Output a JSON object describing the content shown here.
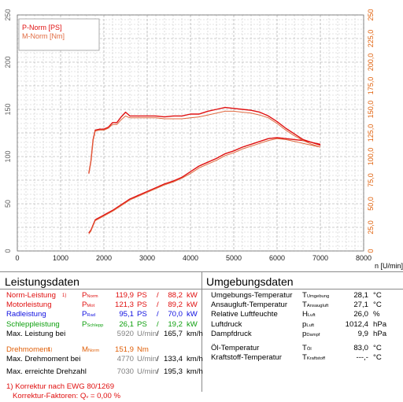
{
  "chart_data": {
    "type": "line",
    "left_axis": {
      "ticks": [
        "0",
        "50",
        "100",
        "150",
        "200",
        "250"
      ],
      "ylim": [
        0,
        250
      ]
    },
    "right_axis": {
      "ticks": [
        "0",
        "25,0",
        "50,0",
        "75,0",
        "100,0",
        "125,0",
        "150,0",
        "175,0",
        "200,0",
        "225,0",
        "250"
      ],
      "ylim": [
        0,
        250
      ]
    },
    "x_axis": {
      "ticks": [
        "0",
        "1000",
        "2000",
        "3000",
        "4000",
        "5000",
        "6000",
        "7000",
        "8000"
      ],
      "xlim": [
        0,
        8000
      ],
      "label": "n [U/min]"
    },
    "grid": true,
    "legend": {
      "position": "top-left",
      "entries": [
        "P-Norm [PS]",
        "M-Norm [Nm]"
      ]
    },
    "series": [
      {
        "name": "P-Norm [PS]",
        "color": "#e01010",
        "x": [
          1650,
          1700,
          1800,
          2000,
          2200,
          2400,
          2600,
          2800,
          3000,
          3200,
          3400,
          3600,
          3800,
          4000,
          4200,
          4400,
          4600,
          4800,
          5000,
          5200,
          5400,
          5600,
          5800,
          6000,
          6200,
          6400,
          6600,
          6800,
          7000
        ],
        "values": [
          19,
          22,
          33,
          38,
          43,
          49,
          55,
          59,
          63,
          67,
          71,
          74,
          78,
          84,
          90,
          94,
          98,
          103,
          106,
          110,
          113,
          116,
          119,
          120,
          119,
          118,
          117,
          115,
          113
        ]
      },
      {
        "name": "",
        "color": "#e06a40",
        "x": [
          1650,
          1700,
          1800,
          2000,
          2200,
          2400,
          2600,
          2800,
          3000,
          3200,
          3400,
          3600,
          3800,
          4000,
          4200,
          4400,
          4600,
          4800,
          5000,
          5200,
          5400,
          5600,
          5800,
          6000,
          6200,
          6400,
          6600,
          6800,
          7000
        ],
        "values": [
          18,
          21,
          32,
          37,
          42,
          48,
          54,
          58,
          62,
          66,
          70,
          73,
          77,
          82,
          88,
          92,
          96,
          101,
          104,
          108,
          111,
          114,
          117,
          119,
          118,
          116,
          114,
          112,
          110
        ]
      },
      {
        "name": "M-Norm [Nm]",
        "color": "#e01010",
        "x": [
          1650,
          1700,
          1750,
          1800,
          1900,
          2000,
          2100,
          2200,
          2300,
          2400,
          2500,
          2600,
          2800,
          3000,
          3200,
          3400,
          3600,
          3800,
          4000,
          4200,
          4400,
          4600,
          4800,
          5000,
          5200,
          5400,
          5600,
          5800,
          6000,
          6200,
          6400,
          6600,
          6800,
          7000
        ],
        "values": [
          82,
          95,
          118,
          128,
          129,
          129,
          131,
          136,
          136,
          142,
          147,
          143,
          143,
          143,
          143,
          142,
          143,
          143,
          145,
          145,
          148,
          150,
          152,
          151,
          150,
          149,
          147,
          143,
          137,
          130,
          124,
          118,
          115,
          112
        ]
      },
      {
        "name": "",
        "color": "#e06a40",
        "x": [
          1650,
          1700,
          1750,
          1800,
          1900,
          2000,
          2100,
          2200,
          2300,
          2400,
          2500,
          2600,
          2800,
          3000,
          3200,
          3400,
          3600,
          3800,
          4000,
          4200,
          4400,
          4600,
          4800,
          5000,
          5200,
          5400,
          5600,
          5800,
          6000,
          6200,
          6400,
          6600,
          6800,
          7000
        ],
        "values": [
          82,
          95,
          117,
          127,
          128,
          128,
          130,
          134,
          134,
          139,
          143,
          141,
          141,
          141,
          141,
          140,
          140,
          140,
          141,
          142,
          144,
          146,
          148,
          148,
          147,
          146,
          144,
          141,
          135,
          128,
          122,
          117,
          113,
          110
        ]
      }
    ]
  },
  "leistung": {
    "title": "Leistungsdaten",
    "rows": [
      {
        "label": "Norm-Leistung",
        "note": "1)",
        "sym": "P",
        "sub": "Norm",
        "v1": "119,9",
        "u1": "PS",
        "slash": "/",
        "v2": "88,2",
        "u2": "kW",
        "color": "#e01010"
      },
      {
        "label": "Motorleistung",
        "note": "",
        "sym": "P",
        "sub": "Mot",
        "v1": "121,3",
        "u1": "PS",
        "slash": "/",
        "v2": "89,2",
        "u2": "kW",
        "color": "#e01010"
      },
      {
        "label": "Radleistung",
        "note": "",
        "sym": "P",
        "sub": "Rad",
        "v1": "95,1",
        "u1": "PS",
        "slash": "/",
        "v2": "70,0",
        "u2": "kW",
        "color": "#1010e0"
      },
      {
        "label": "Schleppleistung",
        "note": "",
        "sym": "P",
        "sub": "Schlepp",
        "v1": "26,1",
        "u1": "PS",
        "slash": "/",
        "v2": "19,2",
        "u2": "kW",
        "color": "#10a010"
      }
    ],
    "max_leistung": {
      "label": "Max. Leistung bei",
      "rpm": "5920",
      "rpm_unit": "U/min",
      "slash": "/",
      "speed": "165,7",
      "speed_unit": "km/h"
    },
    "drehmoment": {
      "label": "Drehmoment",
      "note": "1)",
      "sym": "M",
      "sub": "Norm",
      "value": "151,9",
      "unit": "Nm"
    },
    "max_drehmoment": {
      "label": "Max. Drehmoment bei",
      "rpm": "4770",
      "rpm_unit": "U/min",
      "slash": "/",
      "speed": "133,4",
      "speed_unit": "km/h"
    },
    "max_drehzahl": {
      "label": "Max. erreichte Drehzahl",
      "rpm": "7030",
      "rpm_unit": "U/min",
      "slash": "/",
      "speed": "195,3",
      "speed_unit": "km/h"
    },
    "footnote1": "1) Korrektur nach EWG 80/1269",
    "footnote2_label": "Korrektur-Faktoren: Q",
    "footnote2_sub": "v",
    "footnote2_value": "=   0,00 %"
  },
  "umgebung": {
    "title": "Umgebungsdaten",
    "rows": [
      {
        "label": "Umgebungs-Temperatur",
        "sym": "T",
        "sub": "Umgebung",
        "value": "28,1",
        "unit": "°C"
      },
      {
        "label": "Ansaugluft-Temperatur",
        "sym": "T",
        "sub": "Ansaugluft",
        "value": "27,1",
        "unit": "°C"
      },
      {
        "label": "Relative Luftfeuchte",
        "sym": "H",
        "sub": "Luft",
        "value": "26,0",
        "unit": "%"
      },
      {
        "label": "Luftdruck",
        "sym": "p",
        "sub": "Luft",
        "value": "1012,4",
        "unit": "hPa"
      },
      {
        "label": "Dampfdruck",
        "sym": "p",
        "sub": "Dampf",
        "value": "9,9",
        "unit": "hPa"
      },
      {
        "label": "Öl-Temperatur",
        "sym": "T",
        "sub": "Öl",
        "value": "83,0",
        "unit": "°C"
      },
      {
        "label": "Kraftstoff-Temperatur",
        "sym": "T",
        "sub": "Kraftstoff",
        "value": "---,-",
        "unit": "°C"
      }
    ]
  }
}
